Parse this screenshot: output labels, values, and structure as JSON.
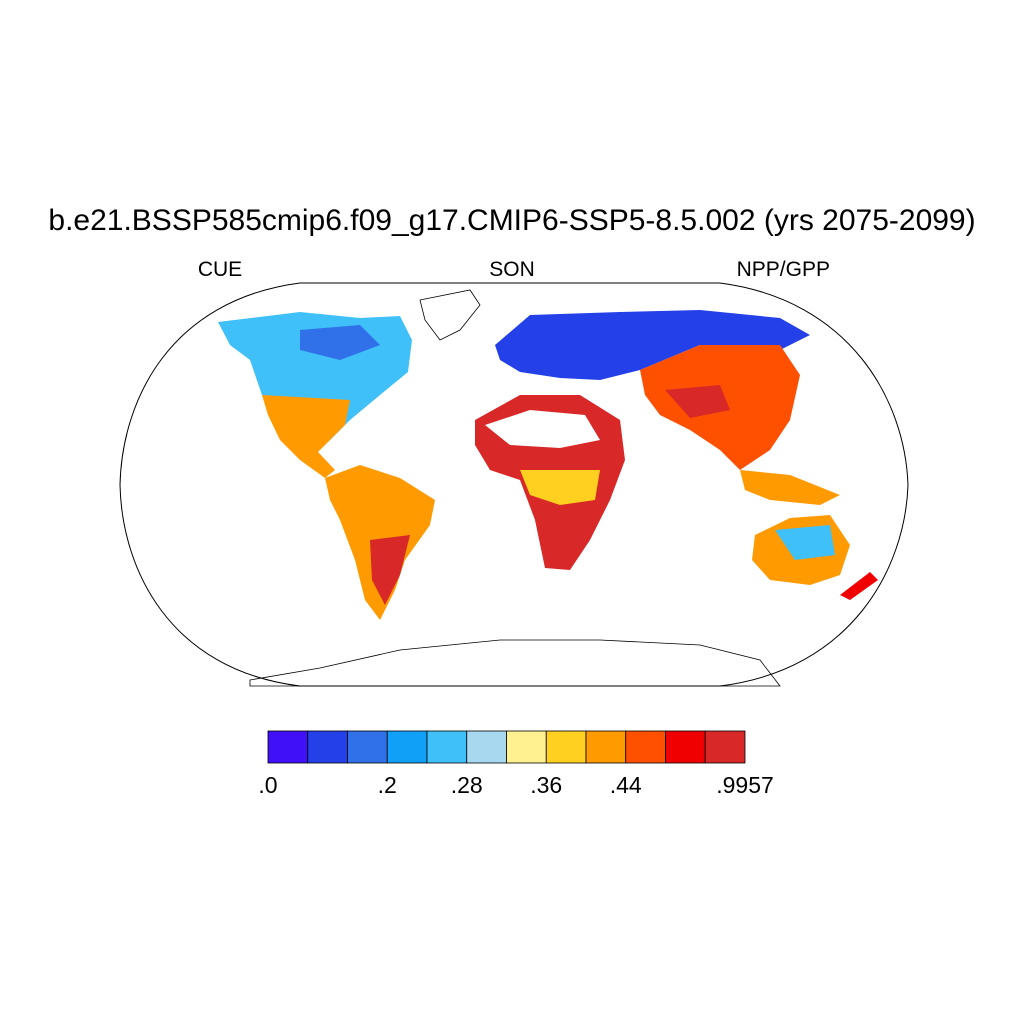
{
  "title": "b.e21.BSSP585cmip6.f09_g17.CMIP6-SSP5-8.5.002 (yrs 2075-2099)",
  "left_label": "CUE",
  "center_label": "SON",
  "right_label": "NPP/GPP",
  "colorbar": {
    "colors": [
      "#4010f8",
      "#2440e8",
      "#3070e8",
      "#10a0f8",
      "#40c0f8",
      "#a8d8f0",
      "#fff090",
      "#ffd020",
      "#ff9a00",
      "#ff5000",
      "#f00000",
      "#d82828"
    ],
    "labels": [
      ".0",
      null,
      null,
      ".2",
      null,
      ".28",
      null,
      ".36",
      null,
      ".44",
      null,
      null,
      ".9957"
    ]
  }
}
